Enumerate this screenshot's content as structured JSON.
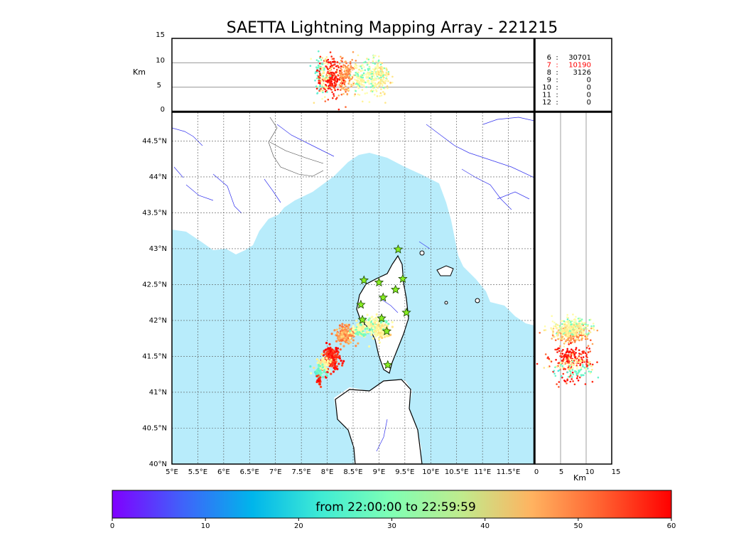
{
  "chart_data": [
    {
      "panel": "altitude-longitude",
      "type": "scatter",
      "ylabel": "Km",
      "ylim": [
        0,
        15
      ],
      "yticks": [
        "0",
        "5",
        "10",
        "15"
      ],
      "xlim": [
        5,
        12
      ],
      "ygrid": [
        5,
        10
      ]
    },
    {
      "panel": "map",
      "type": "scatter",
      "title": "SAETTA Lightning Mapping Array - 221215",
      "xlim": [
        5,
        12
      ],
      "ylim": [
        40,
        44.9
      ],
      "xticks": [
        "5°E",
        "5.5°E",
        "6°E",
        "6.5°E",
        "7°E",
        "7.5°E",
        "8°E",
        "8.5°E",
        "9°E",
        "9.5°E",
        "10°E",
        "10.5°E",
        "11°E",
        "11.5°E"
      ],
      "yticks": [
        "40°N",
        "40.5°N",
        "41°N",
        "41.5°N",
        "42°N",
        "42.5°N",
        "43°N",
        "43.5°N",
        "44°N",
        "44.5°N"
      ],
      "grid": true,
      "stations": [
        {
          "lon": 9.37,
          "lat": 42.99
        },
        {
          "lon": 8.71,
          "lat": 42.56
        },
        {
          "lon": 9.0,
          "lat": 42.53
        },
        {
          "lon": 9.46,
          "lat": 42.58
        },
        {
          "lon": 9.32,
          "lat": 42.43
        },
        {
          "lon": 9.08,
          "lat": 42.32
        },
        {
          "lon": 8.65,
          "lat": 42.22
        },
        {
          "lon": 9.53,
          "lat": 42.11
        },
        {
          "lon": 8.68,
          "lat": 42.01
        },
        {
          "lon": 9.05,
          "lat": 42.03
        },
        {
          "lon": 9.15,
          "lat": 41.85
        },
        {
          "lon": 9.17,
          "lat": 41.38
        }
      ],
      "sources": [
        {
          "lon": 8.35,
          "lat": 41.8,
          "minute": 48,
          "n": 170,
          "slon": 0.09,
          "slat": 0.06
        },
        {
          "lon": 8.6,
          "lat": 41.86,
          "minute": 33,
          "n": 80,
          "slon": 0.07,
          "slat": 0.04
        },
        {
          "lon": 8.88,
          "lat": 41.92,
          "minute": 31,
          "n": 170,
          "slon": 0.12,
          "slat": 0.07
        },
        {
          "lon": 9.05,
          "lat": 41.85,
          "minute": 37,
          "n": 90,
          "slon": 0.08,
          "slat": 0.05
        },
        {
          "lon": 8.08,
          "lat": 41.47,
          "minute": 57,
          "n": 180,
          "slon": 0.08,
          "slat": 0.09
        },
        {
          "lon": 7.93,
          "lat": 41.4,
          "minute": 35,
          "n": 60,
          "slon": 0.07,
          "slat": 0.05
        },
        {
          "lon": 7.83,
          "lat": 41.28,
          "minute": 25,
          "n": 45,
          "slon": 0.06,
          "slat": 0.05
        },
        {
          "lon": 7.85,
          "lat": 41.15,
          "minute": 58,
          "n": 20,
          "slon": 0.02,
          "slat": 0.04
        }
      ]
    },
    {
      "panel": "latitude-altitude",
      "type": "scatter",
      "xlabel": "Km",
      "xlim": [
        0,
        15
      ],
      "xticks": [
        "0",
        "5",
        "10",
        "15"
      ],
      "xgrid": [
        5,
        10
      ]
    },
    {
      "panel": "colorbar",
      "type": "colorbar",
      "label": "from 22:00:00 to 22:59:59",
      "range": [
        0,
        60
      ],
      "ticks": [
        "0",
        "10",
        "20",
        "30",
        "40",
        "50",
        "60"
      ],
      "colormap": "rainbow"
    }
  ],
  "stats": [
    {
      "label": "6",
      "sep": ":",
      "value": "30701",
      "color": "#000000"
    },
    {
      "label": "7",
      "sep": ":",
      "value": "10190",
      "color": "#ff0000"
    },
    {
      "label": "8",
      "sep": ":",
      "value": "3126",
      "color": "#000000"
    },
    {
      "label": "9",
      "sep": ":",
      "value": "0",
      "color": "#000000"
    },
    {
      "label": "10",
      "sep": ":",
      "value": "0",
      "color": "#000000"
    },
    {
      "label": "11",
      "sep": ":",
      "value": "0",
      "color": "#000000"
    },
    {
      "label": "12",
      "sep": ":",
      "value": "0",
      "color": "#000000"
    }
  ],
  "colors": {
    "sea": "#b8ecfb",
    "rivers": "#3333ee",
    "coast": "#000000",
    "station": "#88ee22"
  }
}
